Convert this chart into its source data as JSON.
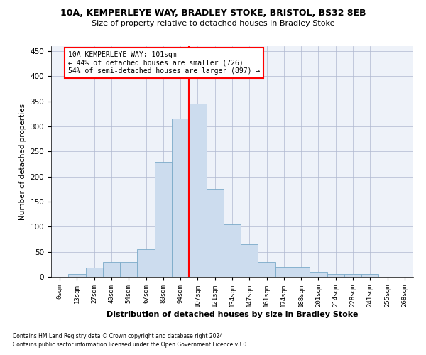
{
  "title1": "10A, KEMPERLEYE WAY, BRADLEY STOKE, BRISTOL, BS32 8EB",
  "title2": "Size of property relative to detached houses in Bradley Stoke",
  "xlabel": "Distribution of detached houses by size in Bradley Stoke",
  "ylabel": "Number of detached properties",
  "footnote1": "Contains HM Land Registry data © Crown copyright and database right 2024.",
  "footnote2": "Contains public sector information licensed under the Open Government Licence v3.0.",
  "annotation_title": "10A KEMPERLEYE WAY: 101sqm",
  "annotation_line1": "← 44% of detached houses are smaller (726)",
  "annotation_line2": "54% of semi-detached houses are larger (897) →",
  "bin_labels": [
    "0sqm",
    "13sqm",
    "27sqm",
    "40sqm",
    "54sqm",
    "67sqm",
    "80sqm",
    "94sqm",
    "107sqm",
    "121sqm",
    "134sqm",
    "147sqm",
    "161sqm",
    "174sqm",
    "188sqm",
    "201sqm",
    "214sqm",
    "228sqm",
    "241sqm",
    "255sqm",
    "268sqm"
  ],
  "bar_values": [
    0,
    5,
    18,
    30,
    30,
    55,
    230,
    315,
    345,
    175,
    105,
    65,
    30,
    20,
    20,
    10,
    5,
    5,
    5,
    0,
    0
  ],
  "bar_color": "#ccdcee",
  "bar_edge_color": "#7aaac8",
  "vline_color": "red",
  "bg_color": "#eef2f9",
  "grid_color": "#b0b8d0",
  "ylim": [
    0,
    460
  ],
  "yticks": [
    0,
    50,
    100,
    150,
    200,
    250,
    300,
    350,
    400,
    450
  ],
  "vline_pos": 7.5
}
